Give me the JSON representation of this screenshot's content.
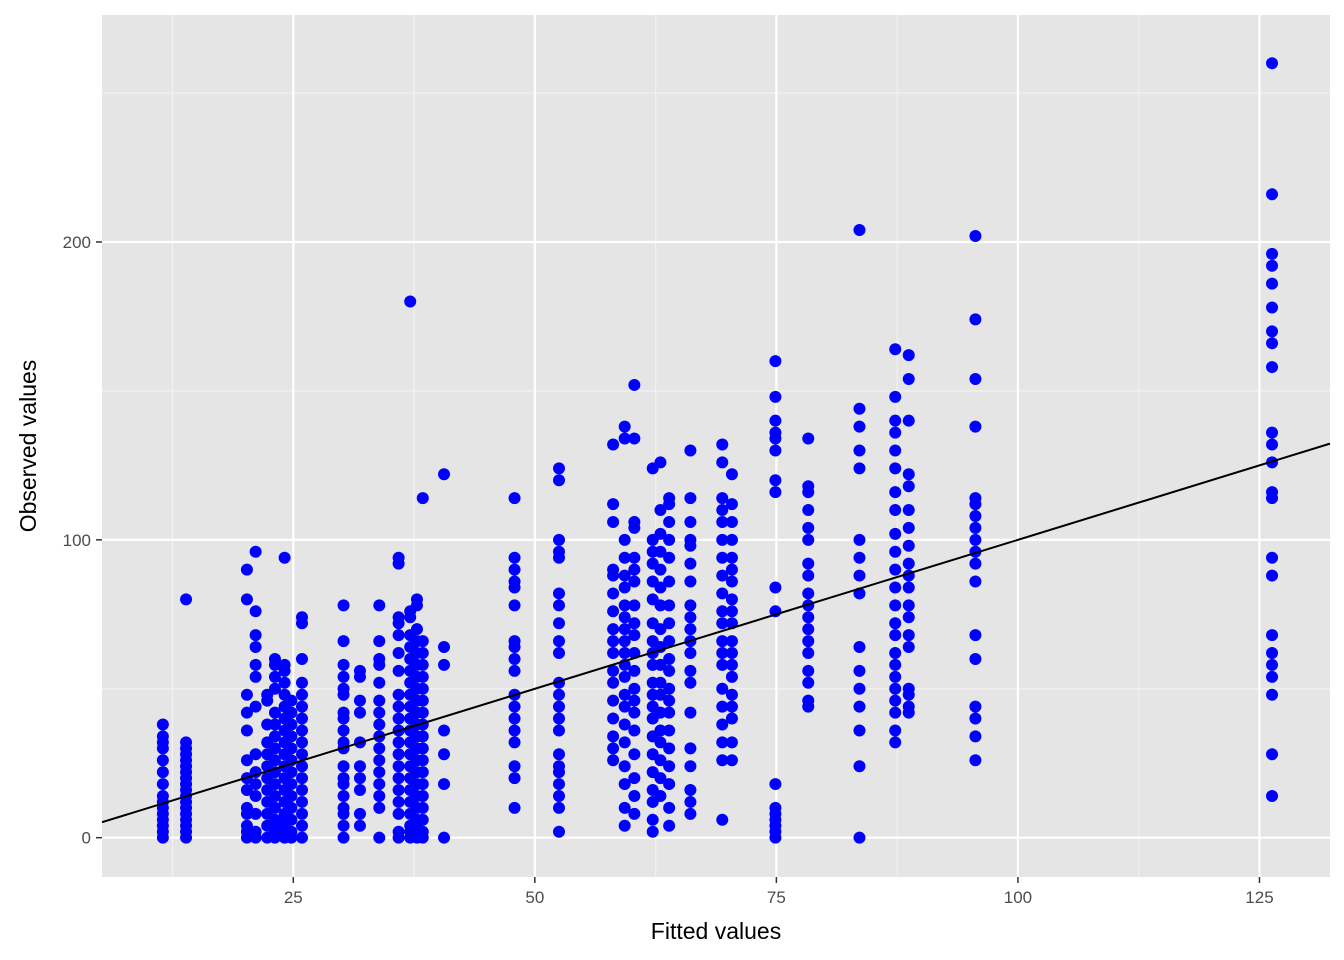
{
  "chart_data": {
    "type": "scatter",
    "title": "",
    "xlabel": "Fitted values",
    "ylabel": "Observed values",
    "xlim": [
      5.2,
      132.3
    ],
    "ylim": [
      -13.2,
      276.2
    ],
    "x_ticks": [
      25,
      50,
      75,
      100,
      125
    ],
    "x_tick_labels": [
      "25",
      "50",
      "75",
      "100",
      "125"
    ],
    "y_ticks": [
      0,
      100,
      200
    ],
    "y_tick_labels": [
      "0",
      "100",
      "200"
    ],
    "grid": true,
    "panel_background": "#e5e5e5",
    "point_color": "#0000ff",
    "line_color": "#000000",
    "reference_line": {
      "intercept": 0,
      "slope": 1
    },
    "columns": [
      {
        "x": 11.5,
        "y": [
          0,
          2,
          4,
          6,
          8,
          10,
          12,
          14,
          18,
          22,
          26,
          30,
          32,
          34,
          38
        ]
      },
      {
        "x": 13.9,
        "y": [
          0,
          2,
          4,
          6,
          8,
          10,
          12,
          14,
          16,
          18,
          20,
          22,
          24,
          26,
          28,
          30,
          32,
          80
        ]
      },
      {
        "x": 20.2,
        "y": [
          0,
          2,
          4,
          8,
          10,
          16,
          20,
          26,
          36,
          42,
          48,
          80,
          90
        ]
      },
      {
        "x": 21.1,
        "y": [
          0,
          2,
          8,
          14,
          18,
          22,
          28,
          44,
          54,
          58,
          64,
          68,
          76,
          96
        ]
      },
      {
        "x": 22.3,
        "y": [
          0,
          4,
          8,
          12,
          16,
          20,
          24,
          28,
          32,
          38,
          46,
          48
        ]
      },
      {
        "x": 23.1,
        "y": [
          0,
          2,
          4,
          6,
          10,
          14,
          18,
          22,
          26,
          30,
          34,
          38,
          42,
          50,
          54,
          58,
          60
        ]
      },
      {
        "x": 24.1,
        "y": [
          0,
          2,
          4,
          6,
          8,
          12,
          16,
          20,
          24,
          28,
          32,
          36,
          40,
          44,
          48,
          52,
          56,
          58,
          94
        ]
      },
      {
        "x": 24.8,
        "y": [
          0,
          2,
          6,
          10,
          14,
          18,
          22,
          26,
          30,
          34,
          38,
          42,
          46
        ]
      },
      {
        "x": 25.9,
        "y": [
          0,
          4,
          8,
          12,
          16,
          20,
          24,
          28,
          32,
          36,
          40,
          44,
          48,
          52,
          60,
          72,
          74
        ]
      },
      {
        "x": 30.2,
        "y": [
          0,
          4,
          8,
          10,
          14,
          18,
          20,
          24,
          30,
          32,
          36,
          40,
          42,
          48,
          50,
          54,
          58,
          66,
          78
        ]
      },
      {
        "x": 31.9,
        "y": [
          4,
          8,
          16,
          20,
          24,
          32,
          42,
          46,
          54,
          56
        ]
      },
      {
        "x": 33.9,
        "y": [
          0,
          10,
          14,
          18,
          22,
          26,
          30,
          34,
          38,
          42,
          46,
          52,
          58,
          60,
          66,
          78
        ]
      },
      {
        "x": 35.9,
        "y": [
          0,
          2,
          8,
          12,
          16,
          20,
          24,
          28,
          32,
          36,
          40,
          44,
          48,
          56,
          62,
          68,
          72,
          74,
          92,
          94
        ]
      },
      {
        "x": 37.1,
        "y": [
          0,
          2,
          4,
          8,
          12,
          16,
          20,
          24,
          28,
          32,
          36,
          40,
          44,
          48,
          52,
          56,
          60,
          64,
          68,
          74,
          76,
          180
        ]
      },
      {
        "x": 37.8,
        "y": [
          0,
          4,
          6,
          10,
          14,
          18,
          22,
          26,
          30,
          34,
          38,
          42,
          46,
          50,
          54,
          58,
          62,
          66,
          70,
          78,
          80
        ]
      },
      {
        "x": 38.4,
        "y": [
          0,
          2,
          6,
          10,
          14,
          18,
          22,
          26,
          30,
          34,
          38,
          42,
          46,
          50,
          54,
          58,
          62,
          66,
          114
        ]
      },
      {
        "x": 40.6,
        "y": [
          0,
          18,
          28,
          36,
          58,
          64,
          122
        ]
      },
      {
        "x": 47.9,
        "y": [
          10,
          20,
          24,
          32,
          36,
          40,
          44,
          48,
          56,
          60,
          64,
          66,
          78,
          84,
          86,
          90,
          94,
          114
        ]
      },
      {
        "x": 52.5,
        "y": [
          2,
          10,
          14,
          18,
          22,
          24,
          28,
          36,
          40,
          44,
          48,
          52,
          62,
          66,
          72,
          78,
          82,
          94,
          96,
          100,
          120,
          124
        ]
      },
      {
        "x": 58.1,
        "y": [
          26,
          30,
          34,
          40,
          46,
          52,
          56,
          62,
          66,
          70,
          76,
          82,
          88,
          90,
          106,
          112,
          132
        ]
      },
      {
        "x": 59.3,
        "y": [
          4,
          10,
          18,
          24,
          32,
          38,
          44,
          48,
          54,
          58,
          62,
          66,
          70,
          74,
          78,
          84,
          88,
          94,
          100,
          134,
          138
        ]
      },
      {
        "x": 60.3,
        "y": [
          8,
          14,
          20,
          28,
          36,
          42,
          46,
          50,
          56,
          62,
          68,
          72,
          78,
          86,
          90,
          94,
          104,
          106,
          134,
          152
        ]
      },
      {
        "x": 62.2,
        "y": [
          2,
          6,
          12,
          16,
          22,
          28,
          34,
          40,
          44,
          48,
          52,
          58,
          62,
          66,
          72,
          80,
          86,
          92,
          96,
          100,
          124
        ]
      },
      {
        "x": 63.0,
        "y": [
          14,
          20,
          26,
          32,
          36,
          42,
          48,
          52,
          58,
          64,
          70,
          78,
          84,
          90,
          96,
          102,
          110,
          126
        ]
      },
      {
        "x": 63.9,
        "y": [
          4,
          10,
          18,
          24,
          30,
          36,
          42,
          46,
          50,
          56,
          60,
          66,
          72,
          78,
          86,
          94,
          100,
          106,
          112,
          114
        ]
      },
      {
        "x": 66.1,
        "y": [
          8,
          12,
          16,
          24,
          30,
          42,
          52,
          56,
          62,
          66,
          70,
          74,
          78,
          86,
          92,
          98,
          100,
          106,
          114,
          130
        ]
      },
      {
        "x": 69.4,
        "y": [
          6,
          26,
          32,
          38,
          44,
          50,
          58,
          62,
          66,
          72,
          76,
          82,
          88,
          94,
          100,
          106,
          110,
          114,
          126,
          132
        ]
      },
      {
        "x": 70.4,
        "y": [
          26,
          32,
          40,
          44,
          48,
          54,
          58,
          62,
          66,
          72,
          76,
          80,
          86,
          90,
          94,
          100,
          106,
          112,
          122
        ]
      },
      {
        "x": 74.9,
        "y": [
          0,
          2,
          4,
          6,
          8,
          10,
          18,
          76,
          84,
          116,
          120,
          130,
          134,
          136,
          140,
          148,
          160
        ]
      },
      {
        "x": 78.3,
        "y": [
          44,
          46,
          52,
          56,
          62,
          66,
          70,
          74,
          78,
          82,
          88,
          92,
          100,
          104,
          110,
          116,
          118,
          134
        ]
      },
      {
        "x": 83.6,
        "y": [
          0,
          24,
          36,
          44,
          50,
          56,
          64,
          82,
          88,
          94,
          100,
          124,
          130,
          138,
          144,
          204
        ]
      },
      {
        "x": 87.3,
        "y": [
          32,
          36,
          42,
          46,
          50,
          54,
          58,
          62,
          68,
          72,
          78,
          84,
          90,
          96,
          102,
          110,
          116,
          124,
          130,
          136,
          140,
          148,
          164
        ]
      },
      {
        "x": 88.7,
        "y": [
          42,
          44,
          48,
          50,
          64,
          68,
          74,
          78,
          84,
          88,
          92,
          98,
          104,
          110,
          118,
          122,
          140,
          154,
          162
        ]
      },
      {
        "x": 95.6,
        "y": [
          26,
          34,
          40,
          44,
          60,
          68,
          86,
          92,
          96,
          100,
          104,
          108,
          112,
          114,
          138,
          154,
          174,
          202
        ]
      },
      {
        "x": 126.3,
        "y": [
          14,
          28,
          48,
          54,
          58,
          62,
          68,
          88,
          94,
          116,
          114,
          126,
          132,
          136,
          158,
          166,
          170,
          178,
          186,
          192,
          196,
          216,
          260
        ]
      }
    ]
  }
}
